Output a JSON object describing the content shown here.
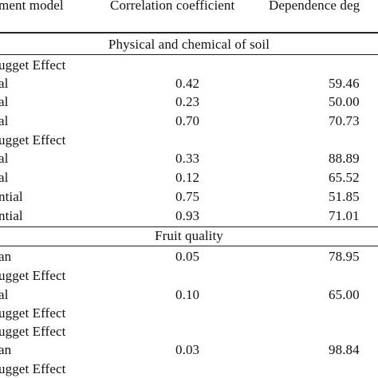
{
  "headers": {
    "model": "ment model",
    "correlation": "Correlation coefficient",
    "dependence": "Dependence deg"
  },
  "sections": [
    {
      "title": "Physical and chemical of soil",
      "rows": [
        {
          "model": "ugget Effect",
          "correlation": "",
          "dependence": ""
        },
        {
          "model": "al",
          "correlation": "0.42",
          "dependence": "59.46"
        },
        {
          "model": "al",
          "correlation": "0.23",
          "dependence": "50.00"
        },
        {
          "model": "al",
          "correlation": "0.70",
          "dependence": "70.73"
        },
        {
          "model": "ugget Effect",
          "correlation": "",
          "dependence": ""
        },
        {
          "model": "al",
          "correlation": "0.33",
          "dependence": "88.89"
        },
        {
          "model": "al",
          "correlation": "0.12",
          "dependence": "65.52"
        },
        {
          "model": "ntial",
          "correlation": "0.75",
          "dependence": "51.85"
        },
        {
          "model": "ntial",
          "correlation": "0.93",
          "dependence": "71.01"
        }
      ]
    },
    {
      "title": "Fruit quality",
      "rows": [
        {
          "model": "an",
          "correlation": "0.05",
          "dependence": "78.95"
        },
        {
          "model": "ugget Effect",
          "correlation": "",
          "dependence": ""
        },
        {
          "model": "al",
          "correlation": "0.10",
          "dependence": "65.00"
        },
        {
          "model": "ugget Effect",
          "correlation": "",
          "dependence": ""
        },
        {
          "model": "ugget Effect",
          "correlation": "",
          "dependence": ""
        },
        {
          "model": "an",
          "correlation": "0.03",
          "dependence": "98.84"
        },
        {
          "model": "ugget Effect",
          "correlation": "",
          "dependence": ""
        }
      ]
    }
  ]
}
